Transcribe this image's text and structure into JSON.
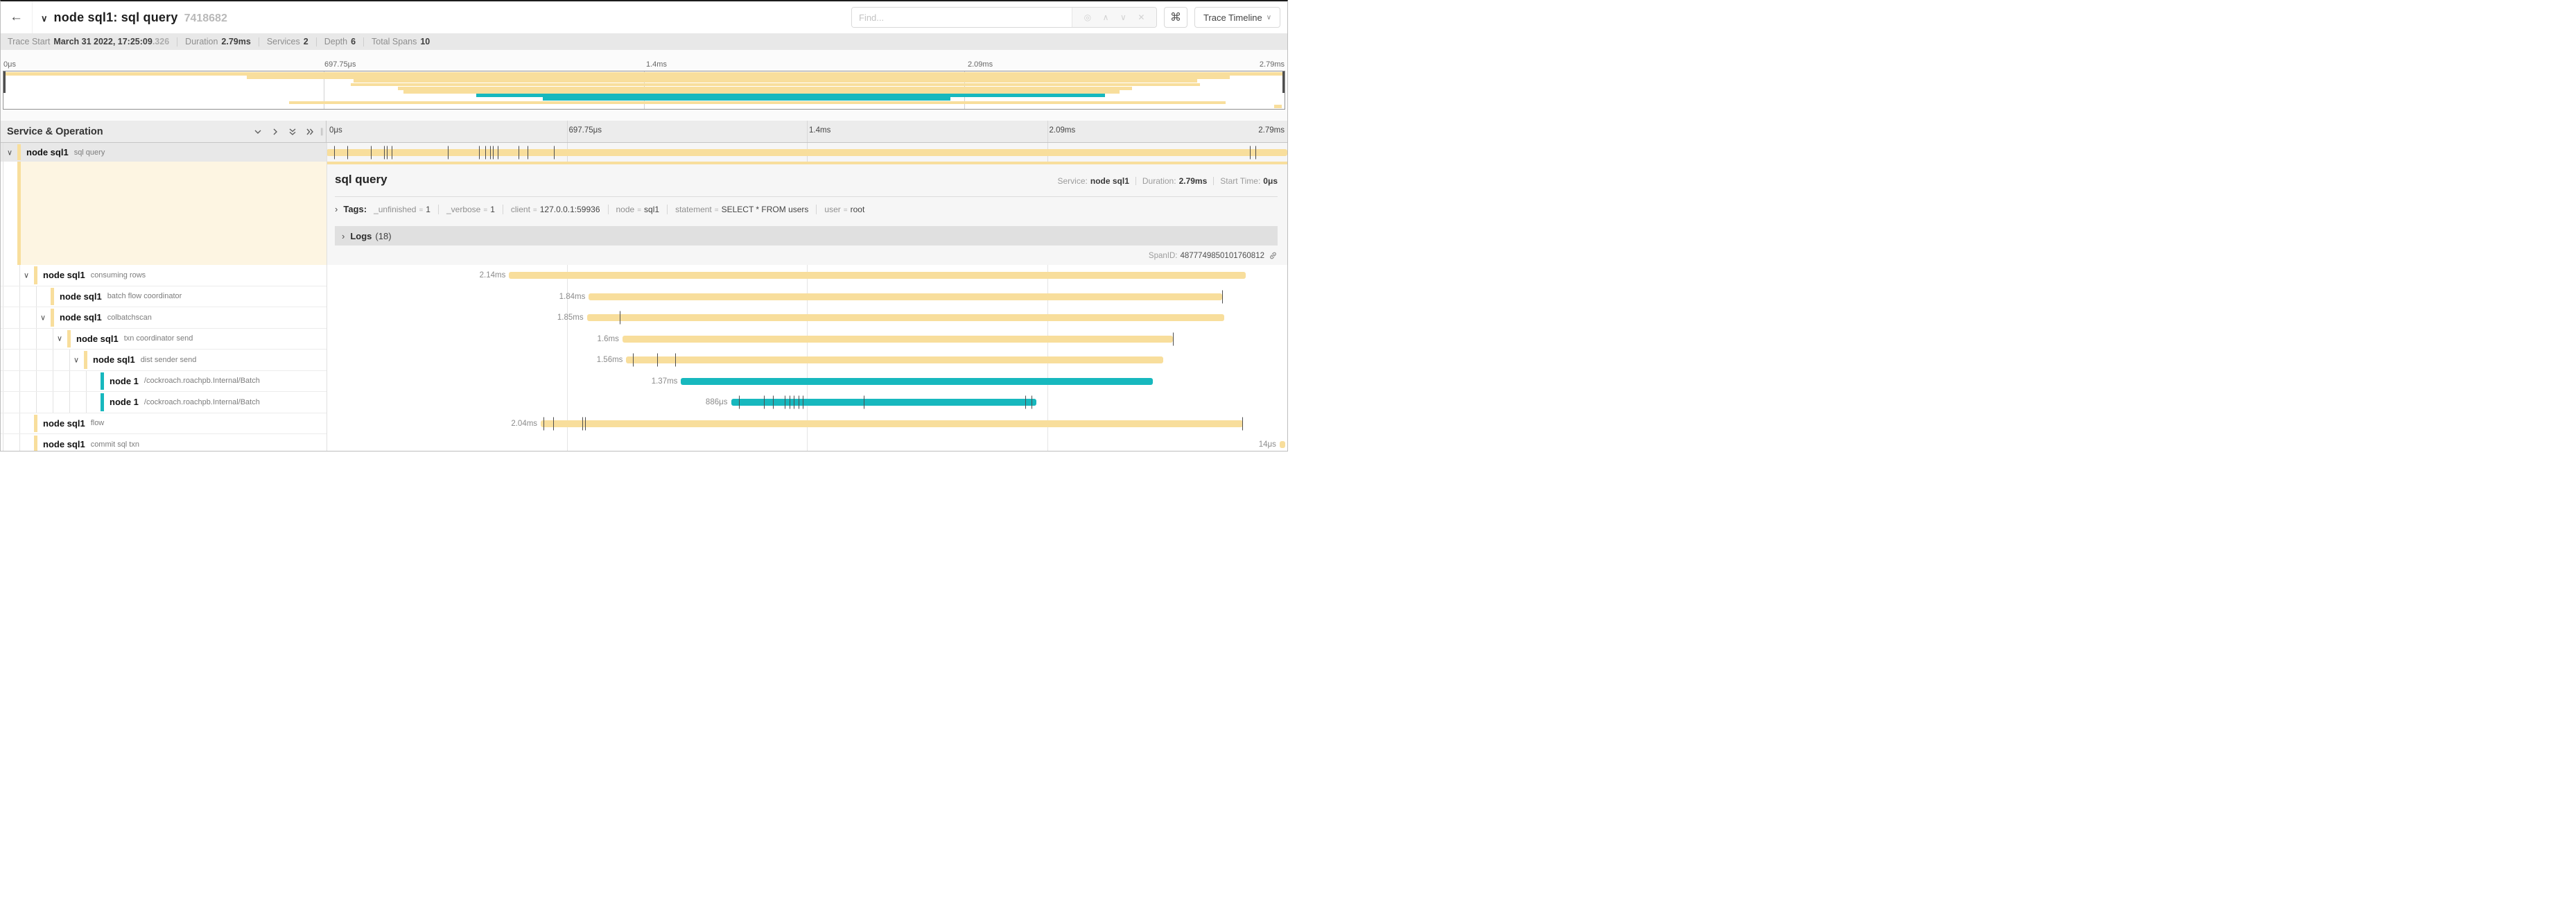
{
  "colors": {
    "tan": "#F8DE9C",
    "teal": "#17B8BE",
    "selected_row_bg": "#e8e8e8",
    "detail_accent_bg": "#fdf5e2",
    "logs_bar_bg": "#e0e0e0",
    "info_bar_bg": "#e8e8e8"
  },
  "icons": {
    "back": "←",
    "chevron_down": "∨",
    "chevron_right": "›",
    "find_target": "◎",
    "find_prev": "∧",
    "find_next": "∨",
    "find_clear": "✕",
    "keyboard_shortcuts": "⌘",
    "dropdown_caret": "∨",
    "splitter_grip": "∥"
  },
  "topbar": {
    "title": "node sql1: sql query",
    "trace_id": "7418682",
    "find_placeholder": "Find...",
    "view_button": "Trace Timeline"
  },
  "summary": {
    "trace_start_label": "Trace Start",
    "trace_start": "March 31 2022, 17:25:09",
    "trace_start_fraction": ".326",
    "duration_label": "Duration",
    "duration": "2.79ms",
    "services_label": "Services",
    "services": "2",
    "depth_label": "Depth",
    "depth": "6",
    "total_spans_label": "Total Spans",
    "total_spans": "10"
  },
  "timeline": {
    "tree_header": "Service & Operation",
    "axis_ticks": [
      "0μs",
      "697.75μs",
      "1.4ms",
      "2.09ms",
      "2.79ms"
    ],
    "tick_positions_pct": [
      0,
      25,
      50,
      75,
      100
    ]
  },
  "detail": {
    "title": "sql query",
    "service_label": "Service:",
    "service": "node sql1",
    "duration_label": "Duration:",
    "duration": "2.79ms",
    "start_label": "Start Time:",
    "start": "0μs",
    "tags_label": "Tags:",
    "tags": [
      {
        "key": "_unfinished",
        "value": "1"
      },
      {
        "key": "_verbose",
        "value": "1"
      },
      {
        "key": "client",
        "value": "127.0.0.1:59936"
      },
      {
        "key": "node",
        "value": "sql1"
      },
      {
        "key": "statement",
        "value": "SELECT * FROM users"
      },
      {
        "key": "user",
        "value": "root"
      }
    ],
    "logs_label": "Logs",
    "logs_count": "(18)",
    "spanid_label": "SpanID:",
    "spanid": "4877749850101760812"
  },
  "spans": [
    {
      "service": "node sql1",
      "operation": "sql query",
      "depth": 0,
      "color": "tan",
      "chevron": true,
      "selected": true,
      "start_pct": 0,
      "width_pct": 100,
      "duration_label": "",
      "tick_marks_pct": [
        0.8,
        2.2,
        4.6,
        6.0,
        6.3,
        6.8,
        12.6,
        15.9,
        16.5,
        17.0,
        17.3,
        17.8,
        20.0,
        20.9,
        23.7,
        96.1,
        96.7
      ]
    },
    {
      "service": "node sql1",
      "operation": "consuming rows",
      "depth": 1,
      "color": "tan",
      "chevron": true,
      "selected": false,
      "start_pct": 19.0,
      "width_pct": 76.7,
      "duration_label": "2.14ms",
      "tick_marks_pct": []
    },
    {
      "service": "node sql1",
      "operation": "batch flow coordinator",
      "depth": 2,
      "color": "tan",
      "chevron": false,
      "selected": false,
      "start_pct": 27.3,
      "width_pct": 65.9,
      "duration_label": "1.84ms",
      "tick_marks_pct": [
        93.2
      ]
    },
    {
      "service": "node sql1",
      "operation": "colbatchscan",
      "depth": 2,
      "color": "tan",
      "chevron": true,
      "selected": false,
      "start_pct": 27.1,
      "width_pct": 66.3,
      "duration_label": "1.85ms",
      "tick_marks_pct": [
        30.5
      ]
    },
    {
      "service": "node sql1",
      "operation": "txn coordinator send",
      "depth": 3,
      "color": "tan",
      "chevron": true,
      "selected": false,
      "start_pct": 30.8,
      "width_pct": 57.3,
      "duration_label": "1.6ms",
      "tick_marks_pct": [
        88.1
      ]
    },
    {
      "service": "node sql1",
      "operation": "dist sender send",
      "depth": 4,
      "color": "tan",
      "chevron": true,
      "selected": false,
      "start_pct": 31.2,
      "width_pct": 55.9,
      "duration_label": "1.56ms",
      "tick_marks_pct": [
        31.9,
        34.4,
        36.3
      ]
    },
    {
      "service": "node 1",
      "operation": "/cockroach.roachpb.Internal/Batch",
      "depth": 5,
      "color": "teal",
      "chevron": false,
      "selected": false,
      "start_pct": 36.9,
      "width_pct": 49.1,
      "duration_label": "1.37ms",
      "tick_marks_pct": []
    },
    {
      "service": "node 1",
      "operation": "/cockroach.roachpb.Internal/Batch",
      "depth": 5,
      "color": "teal",
      "chevron": false,
      "selected": false,
      "start_pct": 42.1,
      "width_pct": 31.8,
      "duration_label": "886μs",
      "tick_marks_pct": [
        42.9,
        45.5,
        46.5,
        47.7,
        48.2,
        48.6,
        49.1,
        49.6,
        55.9,
        72.7,
        73.4
      ]
    },
    {
      "service": "node sql1",
      "operation": "flow",
      "depth": 1,
      "color": "tan",
      "chevron": false,
      "selected": false,
      "start_pct": 22.3,
      "width_pct": 73.1,
      "duration_label": "2.04ms",
      "tick_marks_pct": [
        22.6,
        23.6,
        26.6,
        26.9,
        95.3
      ]
    },
    {
      "service": "node sql1",
      "operation": "commit sql txn",
      "depth": 1,
      "color": "tan",
      "chevron": false,
      "selected": false,
      "start_pct": 99.2,
      "width_pct": 0.6,
      "duration_label": "14μs",
      "tick_marks_pct": []
    }
  ]
}
